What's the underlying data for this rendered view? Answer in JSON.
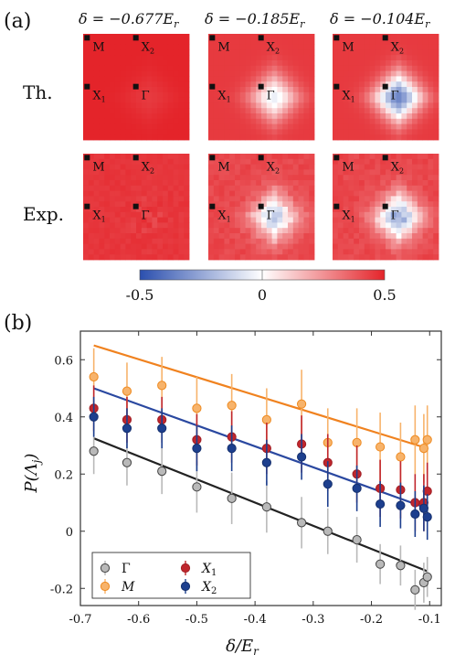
{
  "panel_a": {
    "label": "(a)",
    "column_titles": [
      "δ = −0.677E",
      "δ = −0.185E",
      "δ = −0.104E"
    ],
    "column_title_sub": "r",
    "row_labels": [
      "Th.",
      "Exp."
    ],
    "point_labels": [
      "M",
      "X",
      "X",
      "Γ"
    ],
    "point_label_subs": [
      "",
      "2",
      "1",
      ""
    ],
    "colorbar": {
      "min": -0.5,
      "max": 0.5,
      "ticks": [
        "-0.5",
        "0",
        "0.5"
      ],
      "colors": [
        "#2b4fae",
        "#ffffff",
        "#e4242a"
      ]
    },
    "maps": [
      {
        "row": "Th.",
        "delta": -0.677,
        "center": 0.45,
        "ring": 0.5,
        "noise": 0.0
      },
      {
        "row": "Th.",
        "delta": -0.185,
        "center": -0.05,
        "ring": 0.45,
        "noise": 0.0
      },
      {
        "row": "Th.",
        "delta": -0.104,
        "center": -0.35,
        "ring": 0.45,
        "noise": 0.0
      },
      {
        "row": "Exp.",
        "delta": -0.677,
        "center": 0.44,
        "ring": 0.46,
        "noise": 0.03
      },
      {
        "row": "Exp.",
        "delta": -0.185,
        "center": -0.15,
        "ring": 0.42,
        "noise": 0.06
      },
      {
        "row": "Exp.",
        "delta": -0.104,
        "center": -0.25,
        "ring": 0.42,
        "noise": 0.06
      }
    ]
  },
  "chart_data": {
    "type": "scatter",
    "panel_label": "(b)",
    "xlabel": "δ/E",
    "xlabel_sub": "r",
    "ylabel": "P(Λ",
    "ylabel_sub": "j",
    "xlim": [
      -0.7,
      -0.08
    ],
    "ylim": [
      -0.26,
      0.7
    ],
    "xticks": [
      -0.7,
      -0.6,
      -0.5,
      -0.4,
      -0.3,
      -0.2,
      -0.1
    ],
    "xtick_labels": [
      "-0.7",
      "-0.6",
      "-0.5",
      "-0.4",
      "-0.3",
      "-0.2",
      "-0.1"
    ],
    "yticks": [
      -0.2,
      0,
      0.2,
      0.4,
      0.6
    ],
    "ytick_labels": [
      "-0.2",
      "0",
      "0.2",
      "0.4",
      "0.6"
    ],
    "x": [
      -0.677,
      -0.62,
      -0.56,
      -0.5,
      -0.44,
      -0.38,
      -0.32,
      -0.275,
      -0.225,
      -0.185,
      -0.15,
      -0.125,
      -0.11,
      -0.104
    ],
    "series": [
      {
        "name": "Γ",
        "color": "#b9b9b9",
        "edge": "#444444",
        "y": [
          0.28,
          0.24,
          0.21,
          0.155,
          0.115,
          0.085,
          0.03,
          0.0,
          -0.03,
          -0.115,
          -0.12,
          -0.205,
          -0.18,
          -0.16
        ],
        "err": [
          0.08,
          0.08,
          0.08,
          0.09,
          0.09,
          0.09,
          0.09,
          0.08,
          0.08,
          0.07,
          0.07,
          0.07,
          0.07,
          0.07
        ]
      },
      {
        "name": "M",
        "color": "#f7b36b",
        "edge": "#ee8a20",
        "y": [
          0.54,
          0.49,
          0.51,
          0.43,
          0.44,
          0.39,
          0.445,
          0.31,
          0.31,
          0.295,
          0.26,
          0.32,
          0.29,
          0.32
        ],
        "err": [
          0.1,
          0.1,
          0.1,
          0.11,
          0.11,
          0.11,
          0.12,
          0.12,
          0.12,
          0.12,
          0.12,
          0.12,
          0.12,
          0.12
        ]
      },
      {
        "name": "X1",
        "color": "#c0262d",
        "edge": "#a01e24",
        "y": [
          0.43,
          0.39,
          0.39,
          0.32,
          0.33,
          0.29,
          0.305,
          0.24,
          0.2,
          0.15,
          0.145,
          0.1,
          0.1,
          0.14
        ],
        "err": [
          0.08,
          0.08,
          0.08,
          0.09,
          0.09,
          0.09,
          0.1,
          0.1,
          0.1,
          0.1,
          0.1,
          0.1,
          0.1,
          0.1
        ]
      },
      {
        "name": "X2",
        "color": "#1d3f8e",
        "edge": "#15306e",
        "y": [
          0.4,
          0.36,
          0.36,
          0.29,
          0.29,
          0.24,
          0.26,
          0.165,
          0.15,
          0.095,
          0.09,
          0.06,
          0.08,
          0.05
        ],
        "err": [
          0.07,
          0.07,
          0.07,
          0.08,
          0.08,
          0.08,
          0.08,
          0.08,
          0.08,
          0.08,
          0.08,
          0.08,
          0.08,
          0.08
        ]
      }
    ],
    "theory_lines": [
      {
        "color": "#f0821f",
        "x": [
          -0.677,
          -0.104
        ],
        "y": [
          0.65,
          0.29
        ]
      },
      {
        "color": "#2a48a0",
        "x": [
          -0.677,
          -0.104
        ],
        "y": [
          0.5,
          0.08
        ]
      },
      {
        "color": "#222222",
        "x": [
          -0.677,
          -0.104
        ],
        "y": [
          0.325,
          -0.14
        ]
      }
    ],
    "legend": {
      "placement": "bottom-left",
      "entries": [
        {
          "label": "Γ",
          "sub": "",
          "series": 0
        },
        {
          "label": "X",
          "sub": "1",
          "series": 2
        },
        {
          "label": "M",
          "sub": "",
          "series": 1
        },
        {
          "label": "X",
          "sub": "2",
          "series": 3
        }
      ]
    }
  }
}
